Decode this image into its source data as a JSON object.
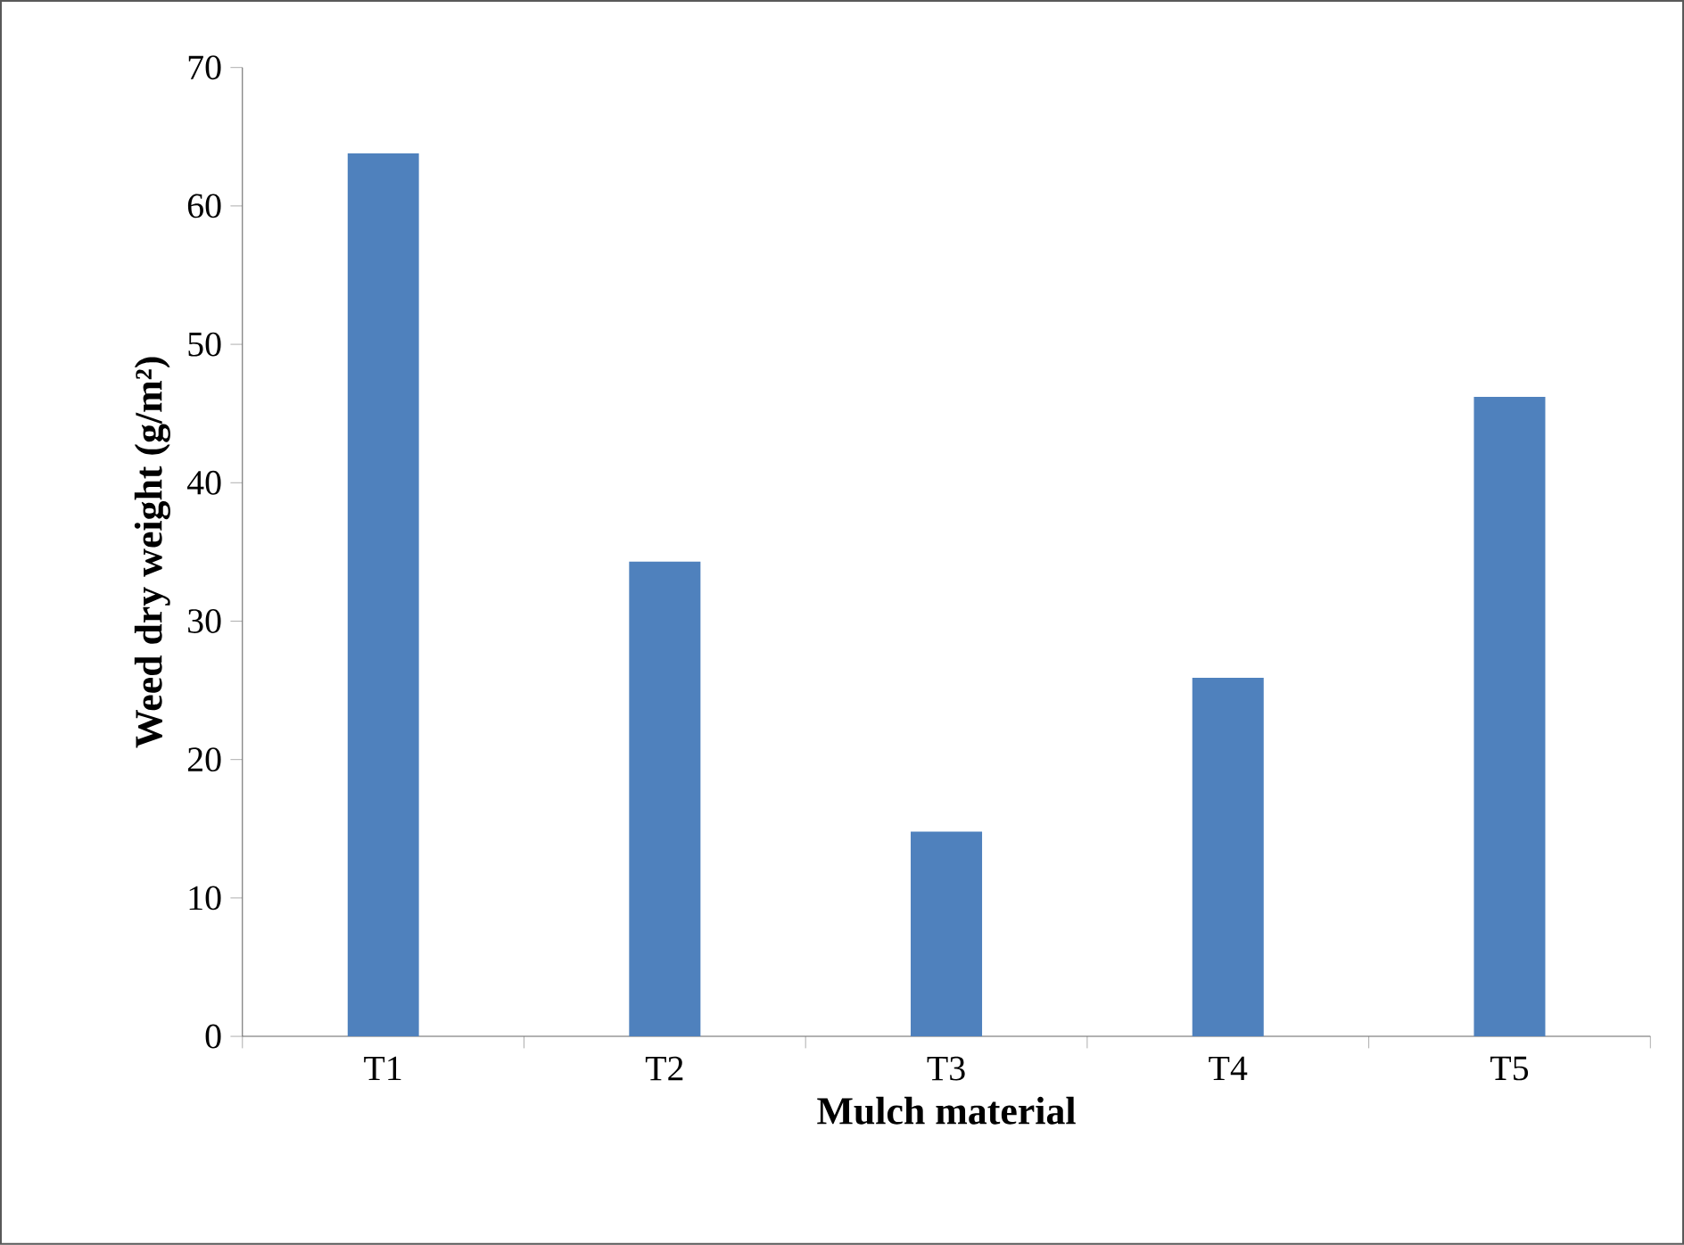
{
  "chart_data": {
    "type": "bar",
    "xlabel": "Mulch material",
    "ylabel": "Weed dry weight (g/m²)",
    "categories": [
      "T1",
      "T2",
      "T3",
      "T4",
      "T5"
    ],
    "values": [
      63.8,
      34.3,
      14.8,
      25.9,
      46.2
    ],
    "color": "#4f81bd",
    "ylim": [
      0,
      70
    ],
    "yticks": [
      0,
      10,
      20,
      30,
      40,
      50,
      60,
      70
    ]
  }
}
